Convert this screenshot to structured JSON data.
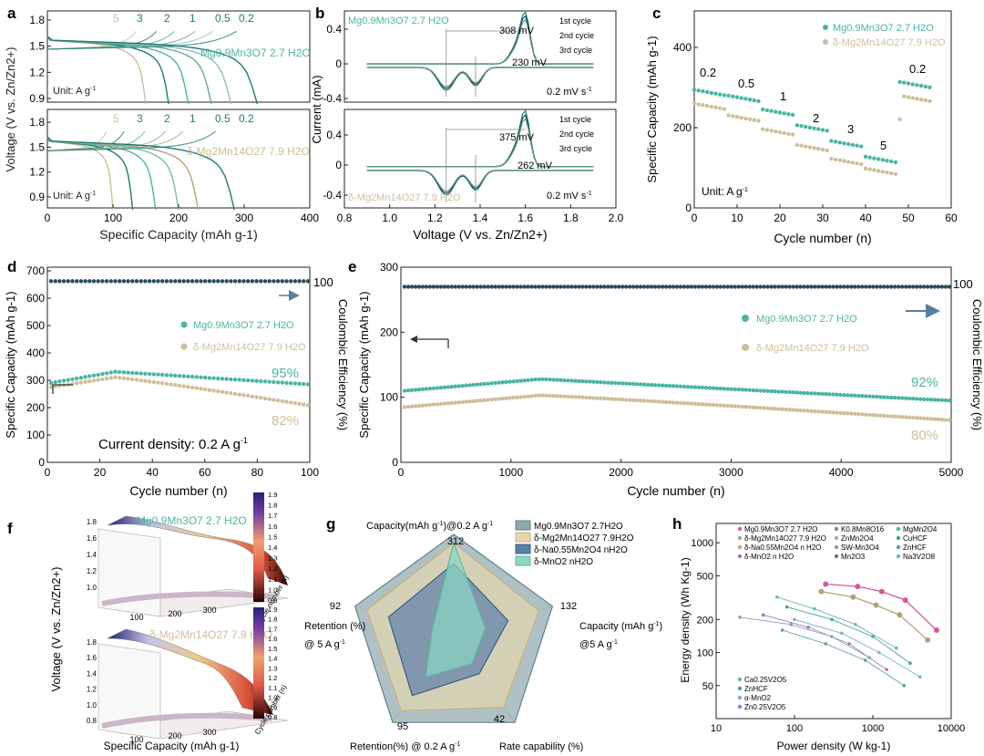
{
  "figure": {
    "panel_labels": [
      "a",
      "b",
      "c",
      "d",
      "e",
      "f",
      "g",
      "h"
    ],
    "colors": {
      "teal": "#4bb5a2",
      "teal_dark": "#1f7a72",
      "navy": "#2a4a5c",
      "beige": "#cdbf9a",
      "beige_dark": "#b5a27a",
      "axis": "#222222",
      "pink": "#d4589b",
      "blue_arrow": "#5a7f9c"
    }
  },
  "chart_data": [
    {
      "id": "a-top",
      "type": "line",
      "series_label": "Mg0.9Mn3O7 2.7 H2O",
      "unit_label": "Unit: A g",
      "rate_labels": [
        "5",
        "3",
        "2",
        "1",
        "0.5",
        "0.2"
      ],
      "xlim": [
        0,
        400
      ],
      "ylim": [
        0.9,
        1.9
      ],
      "yticks": [
        "0.9",
        "1.2",
        "1.5",
        "1.8"
      ],
      "ylabel": "Voltage (V vs. Zn/Zn2+)",
      "end_capacities": [
        150,
        185,
        215,
        250,
        280,
        320
      ]
    },
    {
      "id": "a-bottom",
      "type": "line",
      "series_label": "δ-Mg2Mn14O27 7.9 H2O",
      "unit_label": "Unit: A g",
      "rate_labels": [
        "5",
        "3",
        "2",
        "1",
        "0.5",
        "0.2"
      ],
      "xlim": [
        0,
        400
      ],
      "ylim": [
        0.9,
        1.9
      ],
      "xticks": [
        "0",
        "100",
        "200",
        "300",
        "400"
      ],
      "yticks": [
        "0.9",
        "1.2",
        "1.5",
        "1.8"
      ],
      "xlabel": "Specific Capacity (mAh g-1)",
      "end_capacities": [
        100,
        130,
        165,
        200,
        230,
        285
      ]
    },
    {
      "id": "b-top",
      "type": "line",
      "series_label": "Mg0.9Mn3O7 2.7 H2O",
      "legend": [
        "1st cycle",
        "2nd cycle",
        "3rd cycle"
      ],
      "annotations": [
        "308 mV",
        "230 mV",
        "0.2 mV s"
      ],
      "xlim": [
        0.8,
        2.0
      ],
      "ylim": [
        -0.4,
        0.6
      ],
      "yticks": [
        "-0.4",
        "0",
        "0.4"
      ]
    },
    {
      "id": "b-bottom",
      "type": "line",
      "series_label": "δ-Mg2Mn14O27 7.9 H2O",
      "legend": [
        "1st cycle",
        "2nd cycle",
        "3rd cycle"
      ],
      "annotations": [
        "375 mV",
        "262 mV",
        "0.2 mV s"
      ],
      "xlim": [
        0.8,
        2.0
      ],
      "ylim": [
        -0.4,
        0.6
      ],
      "xticks": [
        "0.8",
        "1.0",
        "1.2",
        "1.4",
        "1.6",
        "1.8",
        "2.0"
      ],
      "yticks": [
        "-0.4",
        "0",
        "0.4"
      ],
      "xlabel": "Voltage (V vs. Zn/Zn2+)",
      "ylabel": "Current (mA)"
    },
    {
      "id": "c",
      "type": "scatter",
      "title": "",
      "xlabel": "Cycle number (n)",
      "ylabel": "Specific Capacity (mAh g-1)",
      "xlim": [
        0,
        60
      ],
      "ylim": [
        0,
        500
      ],
      "xticks": [
        "0",
        "10",
        "20",
        "30",
        "40",
        "50",
        "60"
      ],
      "yticks": [
        "0",
        "200",
        "400"
      ],
      "unit_label": "Unit: A g",
      "rate_labels": [
        "0.2",
        "0.5",
        "1",
        "2",
        "3",
        "5",
        "0.2"
      ],
      "legend": [
        "Mg0.9Mn3O7 2.7 H2O",
        "δ-Mg2Mn14O27 7.9 H2O"
      ],
      "series": [
        {
          "name": "Mg0.9Mn3O7 2.7 H2O",
          "segments": [
            300,
            285,
            250,
            210,
            170,
            130,
            320
          ]
        },
        {
          "name": "δ-Mg2Mn14O27 7.9 H2O",
          "segments": [
            265,
            235,
            200,
            160,
            125,
            100,
            285
          ]
        }
      ]
    },
    {
      "id": "d",
      "type": "scatter",
      "xlabel": "Cycle number (n)",
      "ylabel": "Specific Capacity (mAh g-1)",
      "ylabel2": "Coulombic Efficiency (%)",
      "xlim": [
        0,
        100
      ],
      "ylim": [
        0,
        700
      ],
      "xticks": [
        "0",
        "20",
        "40",
        "60",
        "80",
        "100"
      ],
      "yticks": [
        "0",
        "100",
        "200",
        "300",
        "400",
        "500",
        "600",
        "700"
      ],
      "y2tick": "100",
      "legend": [
        "Mg0.9Mn3O7 2.7 H2O",
        "δ-Mg2Mn14O27 7.9 H2O"
      ],
      "annotations": [
        "95%",
        "82%",
        "Current density: 0.2 A g"
      ],
      "series": [
        {
          "name": "Mg0.9Mn3O7 2.7 H2O",
          "start": 285,
          "peak": 325,
          "end": 280
        },
        {
          "name": "δ-Mg2Mn14O27 7.9 H2O",
          "start": 270,
          "peak": 305,
          "end": 205
        },
        {
          "name": "Coulombic Efficiency",
          "value": 650
        }
      ]
    },
    {
      "id": "e",
      "type": "scatter",
      "xlabel": "Cycle number (n)",
      "ylabel": "Specific Capacity (mAh g-1)",
      "ylabel2": "Coulombic Efficiency (%)",
      "xlim": [
        0,
        5000
      ],
      "ylim": [
        0,
        300
      ],
      "xticks": [
        "0",
        "1000",
        "2000",
        "3000",
        "4000",
        "5000"
      ],
      "yticks": [
        "0",
        "100",
        "200",
        "300"
      ],
      "y2tick": "100",
      "legend": [
        "Mg0.9Mn3O7 2.7 H2O",
        "δ-Mg2Mn14O27 7.9 H2O"
      ],
      "annotations": [
        "92%",
        "80%"
      ],
      "series": [
        {
          "name": "Mg0.9Mn3O7 2.7 H2O",
          "start": 110,
          "peak": 128,
          "end": 95
        },
        {
          "name": "δ-Mg2Mn14O27 7.9 H2O",
          "start": 85,
          "peak": 103,
          "end": 65
        },
        {
          "name": "Coulombic Efficiency",
          "value": 270
        }
      ]
    },
    {
      "id": "f",
      "type": "heatmap",
      "series_labels": [
        "Mg0.9Mn3O7 2.7 H2O",
        "δ-Mg2Mn14O27 7.9 H2O"
      ],
      "zlabel": "Voltage (V vs. Zn/Zn2+)",
      "xlabel": "Specific Capacity (mAh g-1)",
      "ylabel": "Cycle number (n)",
      "xticks": [
        "100",
        "200",
        "300"
      ],
      "zticks_top": [
        "1.8",
        "1.6",
        "1.4",
        "1.2",
        "1.0"
      ],
      "zticks_bottom": [
        "1.8",
        "1.6",
        "1.4",
        "1.2",
        "1.0",
        "0.8"
      ],
      "colorbar_top": [
        "1.9",
        "1.8",
        "1.7",
        "1.6",
        "1.5",
        "1.4",
        "1.3",
        "1.2",
        "1.1",
        "1.0",
        "0.9"
      ],
      "colorbar_bottom": [
        "1.9",
        "1.8",
        "1.7",
        "1.6",
        "1.5",
        "1.4",
        "1.3",
        "1.2",
        "1.1",
        "1.0",
        "0.9",
        "0.8"
      ]
    },
    {
      "id": "g",
      "type": "radar",
      "axes": [
        "Capacity(mAh g-1)@0.2 A g-1",
        "Capacity (mAh g-1) @5 A g-1",
        "Rate capability (%)",
        "Retention(%) @ 0.2 A g-1",
        "Retention (%) @ 5 A g-1"
      ],
      "axis_max": [
        "312",
        "132",
        "42",
        "95",
        "92"
      ],
      "legend": [
        "Mg0.9Mn3O7 2.7H2O",
        "δ-Mg2Mn14O27 7.9H2O",
        "δ-Na0.55Mn2O4 nH2O",
        "δ-MnO2 nH2O"
      ],
      "series": [
        {
          "name": "Mg0.9Mn3O7 2.7H2O",
          "values": [
            1.0,
            1.0,
            1.0,
            1.0,
            1.0
          ]
        },
        {
          "name": "δ-Mg2Mn14O27 7.9H2O",
          "values": [
            0.92,
            0.86,
            0.82,
            0.86,
            0.88
          ]
        },
        {
          "name": "δ-Na0.55Mn2O4 nH2O",
          "values": [
            0.72,
            0.55,
            0.42,
            0.68,
            0.66
          ]
        },
        {
          "name": "δ-MnO2 nH2O",
          "values": [
            0.92,
            0.32,
            0.3,
            0.46,
            0.22
          ]
        }
      ]
    },
    {
      "id": "h",
      "type": "scatter",
      "xlabel": "Power density (W kg-1)",
      "ylabel": "Energy density (Wh Kg-1)",
      "xlim_log": [
        10,
        10000
      ],
      "ylim_log": [
        25,
        1500
      ],
      "xticks": [
        "10",
        "100",
        "1000",
        "10000"
      ],
      "yticks": [
        "50",
        "100",
        "200",
        "500",
        "1000"
      ],
      "legend_col1": [
        "Mg0.9Mn3O7 2.7 H2O",
        "δ-Mg2Mn14O27 7.9 H2O",
        "δ-Na0.55Mn2O4 n H2O",
        "δ-MnO2 n H2O"
      ],
      "legend_col2": [
        "K0.8Mn8O16",
        "ZnMn2O4",
        "SW-Mn3O4",
        "Mn2O3"
      ],
      "legend_col3": [
        "MgMn2O4",
        "CuHCF",
        "ZnHCF",
        "Na3V2O8"
      ],
      "legend_bottom": [
        "Ca0.25V2O5",
        "ZnHCF",
        "α-MnO2",
        "Zn0.25V2O5"
      ],
      "series": [
        {
          "name": "Mg0.9Mn3O7 2.7 H2O",
          "points": [
            [
              250,
              420
            ],
            [
              640,
              400
            ],
            [
              1300,
              360
            ],
            [
              2600,
              300
            ],
            [
              6500,
              160
            ]
          ]
        },
        {
          "name": "δ-Mg2Mn14O27 7.9 H2O",
          "points": [
            [
              220,
              360
            ],
            [
              560,
              320
            ],
            [
              1100,
              270
            ],
            [
              2200,
              220
            ],
            [
              5000,
              130
            ]
          ]
        }
      ]
    }
  ]
}
